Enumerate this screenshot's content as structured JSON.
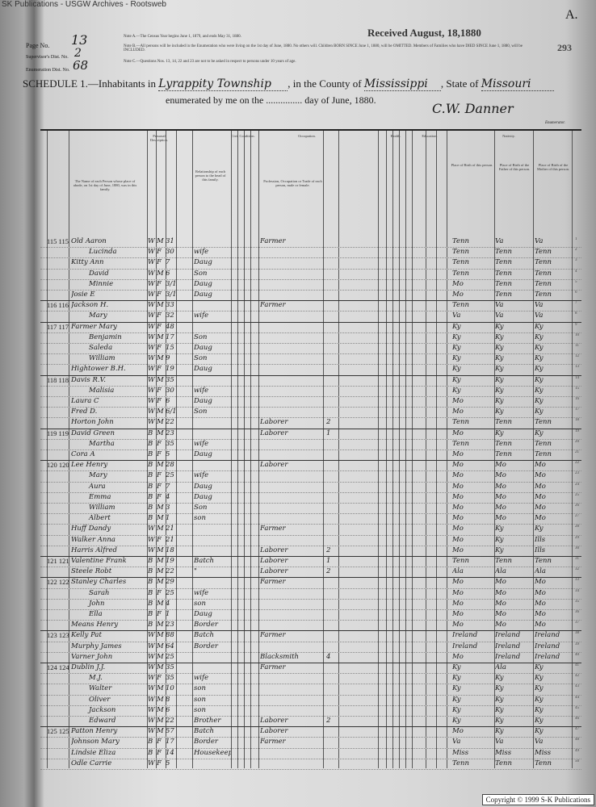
{
  "watermark": "SK Publications - USGW Archives - Rootsweb",
  "copyright": "Copyright © 1999 S-K Publications",
  "stamp": "Received August, 18,1880",
  "corner_letter": "A.",
  "page_stamp_number": "293",
  "page_no_label": "Page No.",
  "page_no": "13",
  "supervisor_label": "Supervisor's Dist. No.",
  "supervisor_no": "2",
  "enumeration_label": "Enumeration Dist. No.",
  "enumeration_no": "68",
  "notes": [
    "Note A.—The Census Year begins June 1, 1879, and ends May 31, 1880.",
    "Note B.—All persons will be included in the Enumeration who were living on the 1st day of June, 1880. No others will. Children BORN SINCE June 1, 1880, will be OMITTED. Members of Families who have DIED SINCE June 1, 1880, will be INCLUDED.",
    "Note C.—Questions Nos. 13, 14, 22 and 23 are not to be asked in respect to persons under 10 years of age."
  ],
  "schedule": {
    "prefix": "SCHEDULE 1.—Inhabitants in",
    "township": "Lyrappity Township",
    "county_label": ", in the County of",
    "county": "Mississippi",
    "state_label": ", State of",
    "state": "Missouri",
    "enumerated": "enumerated by me on the ............... day of June, 1880.",
    "enumerator_signature": "C.W. Danner",
    "enumerator_label": "Enumerator."
  },
  "columns": {
    "personal": "Personal Description.",
    "civil": "Civil Condition.",
    "occupation": "Occupation.",
    "health": "Health.",
    "education": "Education.",
    "nativity": "Nativity.",
    "name": "The Name of each Person whose place of abode, on 1st day of June, 1880, was in this family.",
    "relationship": "Relationship of each person to the head of this family.",
    "occ": "Profession, Occupation or Trade of each person, male or female.",
    "birth": "Place of Birth of this person.",
    "father": "Place of Birth of the Father of this person.",
    "mother": "Place of Birth of the Mother of this person."
  },
  "rows": [
    {
      "hh": "115 115",
      "name": "Old Aaron",
      "c": "W",
      "s": "M",
      "a": "31",
      "rel": "",
      "occ": "Farmer",
      "n": "",
      "b": "Tenn",
      "f": "Va",
      "m": "Va"
    },
    {
      "hh": "",
      "name": "Lucinda",
      "c": "W",
      "s": "F",
      "a": "30",
      "rel": "wife",
      "occ": "",
      "n": "",
      "b": "Tenn",
      "f": "Tenn",
      "m": "Tenn"
    },
    {
      "hh": "",
      "name": "Kitty Ann",
      "c": "W",
      "s": "F",
      "a": "7",
      "rel": "Daug",
      "occ": "",
      "n": "",
      "b": "Tenn",
      "f": "Tenn",
      "m": "Tenn"
    },
    {
      "hh": "",
      "name": "David",
      "c": "W",
      "s": "M",
      "a": "6",
      "rel": "Son",
      "occ": "",
      "n": "",
      "b": "Tenn",
      "f": "Tenn",
      "m": "Tenn"
    },
    {
      "hh": "",
      "name": "Minnie",
      "c": "W",
      "s": "F",
      "a": "3/12",
      "rel": "Daug",
      "occ": "",
      "n": "",
      "b": "Mo",
      "f": "Tenn",
      "m": "Tenn"
    },
    {
      "hh": "",
      "name": "Josie E",
      "c": "W",
      "s": "F",
      "a": "3/12",
      "rel": "Daug",
      "occ": "",
      "n": "",
      "b": "Mo",
      "f": "Tenn",
      "m": "Tenn"
    },
    {
      "hh": "116 116",
      "name": "Jackson H.",
      "c": "W",
      "s": "M",
      "a": "33",
      "rel": "",
      "occ": "Farmer",
      "n": "",
      "b": "Tenn",
      "f": "Va",
      "m": "Va"
    },
    {
      "hh": "",
      "name": "Mary",
      "c": "W",
      "s": "F",
      "a": "32",
      "rel": "wife",
      "occ": "",
      "n": "",
      "b": "Va",
      "f": "Va",
      "m": "Va"
    },
    {
      "hh": "117 117",
      "name": "Farmer Mary",
      "c": "W",
      "s": "F",
      "a": "48",
      "rel": "",
      "occ": "",
      "n": "",
      "b": "Ky",
      "f": "Ky",
      "m": "Ky"
    },
    {
      "hh": "",
      "name": "Benjamin",
      "c": "W",
      "s": "M",
      "a": "17",
      "rel": "Son",
      "occ": "",
      "n": "",
      "b": "Ky",
      "f": "Ky",
      "m": "Ky"
    },
    {
      "hh": "",
      "name": "Saleda",
      "c": "W",
      "s": "F",
      "a": "15",
      "rel": "Daug",
      "occ": "",
      "n": "",
      "b": "Ky",
      "f": "Ky",
      "m": "Ky"
    },
    {
      "hh": "",
      "name": "William",
      "c": "W",
      "s": "M",
      "a": "9",
      "rel": "Son",
      "occ": "",
      "n": "",
      "b": "Ky",
      "f": "Ky",
      "m": "Ky"
    },
    {
      "hh": "",
      "name": "Hightower B.H.",
      "c": "W",
      "s": "F",
      "a": "19",
      "rel": "Daug",
      "occ": "",
      "n": "",
      "b": "Ky",
      "f": "Ky",
      "m": "Ky"
    },
    {
      "hh": "118 118",
      "name": "Davis R.V.",
      "c": "W",
      "s": "M",
      "a": "35",
      "rel": "",
      "occ": "",
      "n": "",
      "b": "Ky",
      "f": "Ky",
      "m": "Ky"
    },
    {
      "hh": "",
      "name": "Malisia",
      "c": "W",
      "s": "F",
      "a": "30",
      "rel": "wife",
      "occ": "",
      "n": "",
      "b": "Ky",
      "f": "Ky",
      "m": "Ky"
    },
    {
      "hh": "",
      "name": "Laura C",
      "c": "W",
      "s": "F",
      "a": "6",
      "rel": "Daug",
      "occ": "",
      "n": "",
      "b": "Mo",
      "f": "Ky",
      "m": "Ky"
    },
    {
      "hh": "",
      "name": "Fred D.",
      "c": "W",
      "s": "M",
      "a": "6/12",
      "rel": "Son",
      "occ": "",
      "n": "",
      "b": "Mo",
      "f": "Ky",
      "m": "Ky"
    },
    {
      "hh": "",
      "name": "Horton John",
      "c": "W",
      "s": "M",
      "a": "22",
      "rel": "",
      "occ": "Laborer",
      "n": "2",
      "b": "Tenn",
      "f": "Tenn",
      "m": "Tenn"
    },
    {
      "hh": "119 119",
      "name": "David Green",
      "c": "B",
      "s": "M",
      "a": "23",
      "rel": "",
      "occ": "Laborer",
      "n": "1",
      "b": "Mo",
      "f": "Ky",
      "m": "Ky"
    },
    {
      "hh": "",
      "name": "Martha",
      "c": "B",
      "s": "F",
      "a": "35",
      "rel": "wife",
      "occ": "",
      "n": "",
      "b": "Tenn",
      "f": "Tenn",
      "m": "Tenn"
    },
    {
      "hh": "",
      "name": "Cora A",
      "c": "B",
      "s": "F",
      "a": "5",
      "rel": "Daug",
      "occ": "",
      "n": "",
      "b": "Mo",
      "f": "Tenn",
      "m": "Tenn"
    },
    {
      "hh": "120 120",
      "name": "Lee Henry",
      "c": "B",
      "s": "M",
      "a": "28",
      "rel": "",
      "occ": "Laborer",
      "n": "",
      "b": "Mo",
      "f": "Mo",
      "m": "Mo"
    },
    {
      "hh": "",
      "name": "Mary",
      "c": "B",
      "s": "F",
      "a": "25",
      "rel": "wife",
      "occ": "",
      "n": "",
      "b": "Mo",
      "f": "Mo",
      "m": "Mo"
    },
    {
      "hh": "",
      "name": "Aura",
      "c": "B",
      "s": "F",
      "a": "7",
      "rel": "Daug",
      "occ": "",
      "n": "",
      "b": "Mo",
      "f": "Mo",
      "m": "Mo"
    },
    {
      "hh": "",
      "name": "Emma",
      "c": "B",
      "s": "F",
      "a": "4",
      "rel": "Daug",
      "occ": "",
      "n": "",
      "b": "Mo",
      "f": "Mo",
      "m": "Mo"
    },
    {
      "hh": "",
      "name": "William",
      "c": "B",
      "s": "M",
      "a": "3",
      "rel": "Son",
      "occ": "",
      "n": "",
      "b": "Mo",
      "f": "Mo",
      "m": "Mo"
    },
    {
      "hh": "",
      "name": "Albert",
      "c": "B",
      "s": "M",
      "a": "1",
      "rel": "son",
      "occ": "",
      "n": "",
      "b": "Mo",
      "f": "Mo",
      "m": "Mo"
    },
    {
      "hh": "",
      "name": "Huff Dandy",
      "c": "W",
      "s": "M",
      "a": "21",
      "rel": "",
      "occ": "Farmer",
      "n": "",
      "b": "Mo",
      "f": "Ky",
      "m": "Ky"
    },
    {
      "hh": "",
      "name": "Walker Anna",
      "c": "W",
      "s": "F",
      "a": "21",
      "rel": "",
      "occ": "",
      "n": "",
      "b": "Mo",
      "f": "Ky",
      "m": "Ills"
    },
    {
      "hh": "",
      "name": "Harris Alfred",
      "c": "W",
      "s": "M",
      "a": "18",
      "rel": "",
      "occ": "Laborer",
      "n": "2",
      "b": "Mo",
      "f": "Ky",
      "m": "Ills"
    },
    {
      "hh": "121 121",
      "name": "Valentine Frank",
      "c": "B",
      "s": "M",
      "a": "19",
      "rel": "Batch",
      "occ": "Laborer",
      "n": "1",
      "b": "Tenn",
      "f": "Tenn",
      "m": "Tenn"
    },
    {
      "hh": "",
      "name": "Steele Robt",
      "c": "B",
      "s": "M",
      "a": "22",
      "rel": "\"",
      "occ": "Laborer",
      "n": "2",
      "b": "Ala",
      "f": "Ala",
      "m": "Ala"
    },
    {
      "hh": "122 122",
      "name": "Stanley Charles",
      "c": "B",
      "s": "M",
      "a": "29",
      "rel": "",
      "occ": "Farmer",
      "n": "",
      "b": "Mo",
      "f": "Mo",
      "m": "Mo"
    },
    {
      "hh": "",
      "name": "Sarah",
      "c": "B",
      "s": "F",
      "a": "25",
      "rel": "wife",
      "occ": "",
      "n": "",
      "b": "Mo",
      "f": "Mo",
      "m": "Mo"
    },
    {
      "hh": "",
      "name": "John",
      "c": "B",
      "s": "M",
      "a": "4",
      "rel": "son",
      "occ": "",
      "n": "",
      "b": "Mo",
      "f": "Mo",
      "m": "Mo"
    },
    {
      "hh": "",
      "name": "Ella",
      "c": "B",
      "s": "F",
      "a": "1",
      "rel": "Daug",
      "occ": "",
      "n": "",
      "b": "Mo",
      "f": "Mo",
      "m": "Mo"
    },
    {
      "hh": "",
      "name": "Means Henry",
      "c": "B",
      "s": "M",
      "a": "23",
      "rel": "Border",
      "occ": "",
      "n": "",
      "b": "Mo",
      "f": "Mo",
      "m": "Mo"
    },
    {
      "hh": "123 123",
      "name": "Kelly Pat",
      "c": "W",
      "s": "M",
      "a": "88",
      "rel": "Batch",
      "occ": "Farmer",
      "n": "",
      "b": "Ireland",
      "f": "Ireland",
      "m": "Ireland"
    },
    {
      "hh": "",
      "name": "Murphy James",
      "c": "W",
      "s": "M",
      "a": "64",
      "rel": "Border",
      "occ": "",
      "n": "",
      "b": "Ireland",
      "f": "Ireland",
      "m": "Ireland"
    },
    {
      "hh": "",
      "name": "Varner John",
      "c": "W",
      "s": "M",
      "a": "25",
      "rel": "",
      "occ": "Blacksmith",
      "n": "4",
      "b": "Mo",
      "f": "Ireland",
      "m": "Ireland"
    },
    {
      "hh": "124 124",
      "name": "Dublin J.J.",
      "c": "W",
      "s": "M",
      "a": "35",
      "rel": "",
      "occ": "Farmer",
      "n": "",
      "b": "Ky",
      "f": "Ala",
      "m": "Ky"
    },
    {
      "hh": "",
      "name": "M.J.",
      "c": "W",
      "s": "F",
      "a": "35",
      "rel": "wife",
      "occ": "",
      "n": "",
      "b": "Ky",
      "f": "Ky",
      "m": "Ky"
    },
    {
      "hh": "",
      "name": "Walter",
      "c": "W",
      "s": "M",
      "a": "10",
      "rel": "son",
      "occ": "",
      "n": "",
      "b": "Ky",
      "f": "Ky",
      "m": "Ky"
    },
    {
      "hh": "",
      "name": "Oliver",
      "c": "W",
      "s": "M",
      "a": "8",
      "rel": "son",
      "occ": "",
      "n": "",
      "b": "Ky",
      "f": "Ky",
      "m": "Ky"
    },
    {
      "hh": "",
      "name": "Jackson",
      "c": "W",
      "s": "M",
      "a": "6",
      "rel": "son",
      "occ": "",
      "n": "",
      "b": "Ky",
      "f": "Ky",
      "m": "Ky"
    },
    {
      "hh": "",
      "name": "Edward",
      "c": "W",
      "s": "M",
      "a": "22",
      "rel": "Brother",
      "occ": "Laborer",
      "n": "2",
      "b": "Ky",
      "f": "Ky",
      "m": "Ky"
    },
    {
      "hh": "125 125",
      "name": "Patton Henry",
      "c": "W",
      "s": "M",
      "a": "57",
      "rel": "Batch",
      "occ": "Laborer",
      "n": "",
      "b": "Mo",
      "f": "Ky",
      "m": "Ky"
    },
    {
      "hh": "",
      "name": "Johnson Mary",
      "c": "B",
      "s": "F",
      "a": "17",
      "rel": "Border",
      "occ": "Farmer",
      "n": "",
      "b": "Va",
      "f": "Va",
      "m": "Va"
    },
    {
      "hh": "",
      "name": "Lindsie Eliza",
      "c": "B",
      "s": "F",
      "a": "14",
      "rel": "Housekeeper",
      "occ": "",
      "n": "",
      "b": "Miss",
      "f": "Miss",
      "m": "Miss"
    },
    {
      "hh": "",
      "name": "Odle Carrie",
      "c": "W",
      "s": "F",
      "a": "5",
      "rel": "",
      "occ": "",
      "n": "",
      "b": "Tenn",
      "f": "Tenn",
      "m": "Tenn"
    }
  ]
}
